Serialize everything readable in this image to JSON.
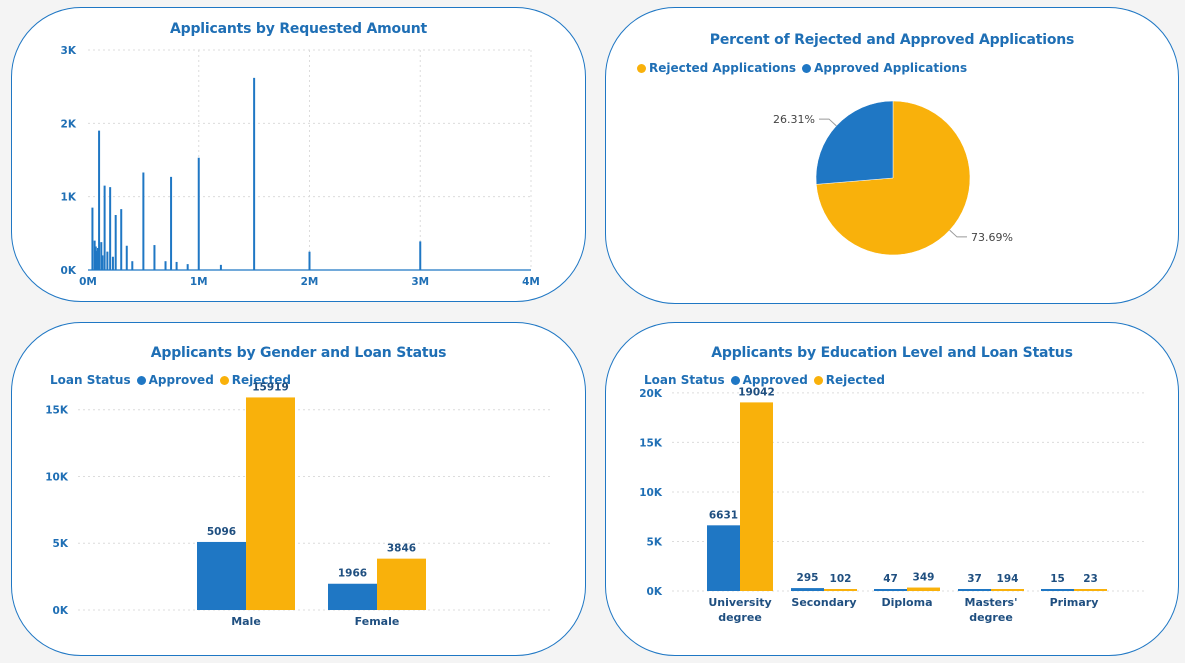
{
  "colors": {
    "approved": "#1f77c4",
    "rejected": "#f9b10b",
    "text": "#1f6fb5"
  },
  "amount_chart": {
    "title": "Applicants by Requested Amount",
    "chart_data": {
      "type": "bar",
      "title": "Applicants by Requested Amount",
      "xlabel": "",
      "ylabel": "",
      "xlim": [
        0,
        4000000
      ],
      "ylim": [
        0,
        3000
      ],
      "x_ticks": [
        "0M",
        "1M",
        "2M",
        "3M",
        "4M"
      ],
      "y_ticks": [
        "0K",
        "1K",
        "2K",
        "3K"
      ],
      "grid": true,
      "points": [
        {
          "x": 40000,
          "y": 850
        },
        {
          "x": 60000,
          "y": 400
        },
        {
          "x": 70000,
          "y": 320
        },
        {
          "x": 80000,
          "y": 260
        },
        {
          "x": 90000,
          "y": 300
        },
        {
          "x": 100000,
          "y": 1900
        },
        {
          "x": 120000,
          "y": 380
        },
        {
          "x": 130000,
          "y": 200
        },
        {
          "x": 150000,
          "y": 1150
        },
        {
          "x": 175000,
          "y": 250
        },
        {
          "x": 200000,
          "y": 1130
        },
        {
          "x": 225000,
          "y": 180
        },
        {
          "x": 250000,
          "y": 750
        },
        {
          "x": 300000,
          "y": 830
        },
        {
          "x": 350000,
          "y": 330
        },
        {
          "x": 400000,
          "y": 120
        },
        {
          "x": 500000,
          "y": 1330
        },
        {
          "x": 600000,
          "y": 340
        },
        {
          "x": 700000,
          "y": 120
        },
        {
          "x": 750000,
          "y": 1270
        },
        {
          "x": 800000,
          "y": 110
        },
        {
          "x": 900000,
          "y": 80
        },
        {
          "x": 1000000,
          "y": 1530
        },
        {
          "x": 1200000,
          "y": 70
        },
        {
          "x": 1500000,
          "y": 2620
        },
        {
          "x": 2000000,
          "y": 250
        },
        {
          "x": 3000000,
          "y": 390
        }
      ]
    }
  },
  "pie_chart": {
    "title": "Percent of Rejected and Approved Applications",
    "legend": [
      "Rejected Applications",
      "Approved Applications"
    ],
    "chart_data": {
      "type": "pie",
      "title": "Percent of Rejected and Approved Applications",
      "slices": [
        {
          "name": "Rejected Applications",
          "value": 73.69,
          "label": "73.69%"
        },
        {
          "name": "Approved Applications",
          "value": 26.31,
          "label": "26.31%"
        }
      ],
      "legend_position": "top-left"
    }
  },
  "gender_chart": {
    "title": "Applicants by Gender and Loan Status",
    "legend_title": "Loan Status",
    "legend": [
      "Approved",
      "Rejected"
    ],
    "chart_data": {
      "type": "bar",
      "title": "Applicants by Gender and Loan Status",
      "categories": [
        "Male",
        "Female"
      ],
      "series": [
        {
          "name": "Approved",
          "values": [
            5096,
            1966
          ]
        },
        {
          "name": "Rejected",
          "values": [
            15919,
            3846
          ]
        }
      ],
      "y_ticks": [
        "0K",
        "5K",
        "10K",
        "15K"
      ],
      "ylim": [
        0,
        17000
      ],
      "grid": true,
      "legend_position": "top-left"
    }
  },
  "edu_chart": {
    "title": "Applicants by Education Level and Loan Status",
    "legend_title": "Loan Status",
    "legend": [
      "Approved",
      "Rejected"
    ],
    "chart_data": {
      "type": "bar",
      "title": "Applicants by Education Level and Loan Status",
      "categories": [
        "University degree",
        "Secondary",
        "Diploma",
        "Masters' degree",
        "Primary"
      ],
      "category_lines": [
        [
          "University",
          "degree"
        ],
        [
          "Secondary"
        ],
        [
          "Diploma"
        ],
        [
          "Masters'",
          "degree"
        ],
        [
          "Primary"
        ]
      ],
      "series": [
        {
          "name": "Approved",
          "values": [
            6631,
            295,
            47,
            37,
            15
          ]
        },
        {
          "name": "Rejected",
          "values": [
            19042,
            102,
            349,
            194,
            23
          ]
        }
      ],
      "y_ticks": [
        "0K",
        "5K",
        "10K",
        "15K",
        "20K"
      ],
      "ylim": [
        0,
        21000
      ],
      "grid": true,
      "legend_position": "top-left"
    }
  }
}
